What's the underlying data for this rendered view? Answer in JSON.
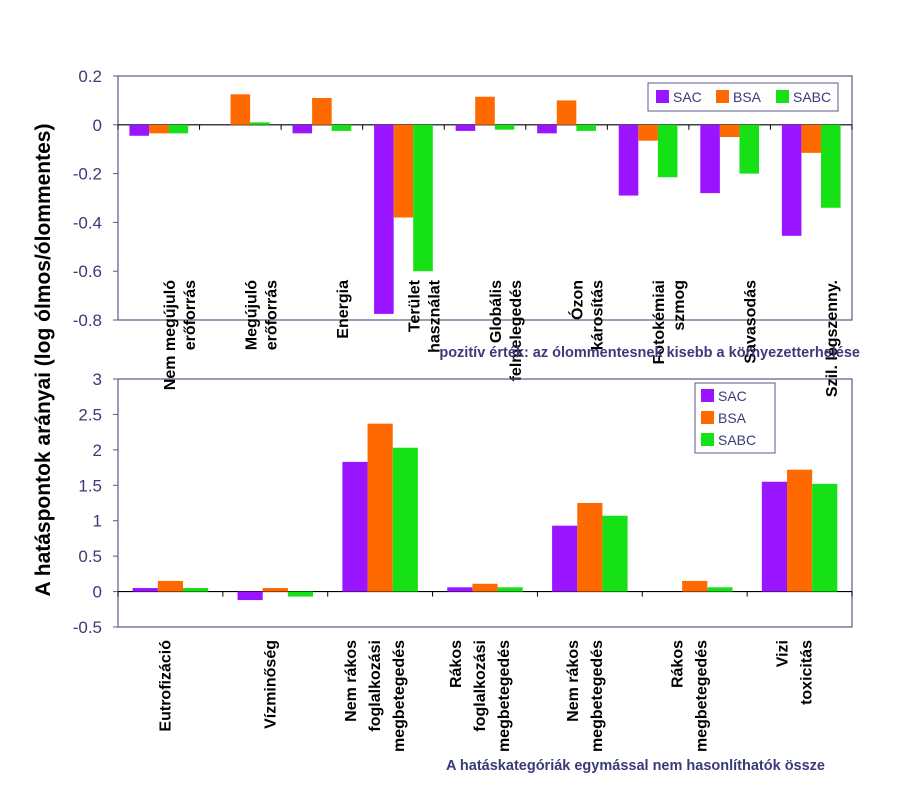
{
  "y_axis_title": "A hatáspontok arányai  (log ólmos/ólommentes)",
  "colors": {
    "SAC": "#9b14ff",
    "BSA": "#ff6a00",
    "SABC": "#16e016",
    "axis": "#3a3a7a",
    "frame": "#5a5a8a"
  },
  "chart_data": [
    {
      "type": "bar",
      "name": "top",
      "ylim": [
        -0.8,
        0.2
      ],
      "yticks": [
        "0.2",
        "0",
        "-0.2",
        "-0.4",
        "-0.6",
        "-0.8"
      ],
      "ytick_values": [
        0.2,
        0,
        -0.2,
        -0.4,
        -0.6,
        -0.8
      ],
      "categories": [
        [
          "Nem megújuló",
          "erőforrás"
        ],
        [
          "Megújuló",
          "erőforrás"
        ],
        [
          "Energia"
        ],
        [
          "Terület",
          "használat"
        ],
        [
          "Globális",
          "felmelegedés"
        ],
        [
          "Ózon",
          "károsítás"
        ],
        [
          "Fotokémiai",
          "szmog"
        ],
        [
          "Savasodás"
        ],
        [
          "Szil. légszenny."
        ]
      ],
      "series": [
        {
          "name": "SAC",
          "values": [
            -0.045,
            0,
            -0.035,
            -0.775,
            -0.025,
            -0.035,
            -0.29,
            -0.28,
            -0.455
          ]
        },
        {
          "name": "BSA",
          "values": [
            -0.035,
            0.125,
            0.11,
            -0.38,
            0.115,
            0.1,
            -0.065,
            -0.05,
            -0.115
          ]
        },
        {
          "name": "SABC",
          "values": [
            -0.035,
            0.01,
            -0.025,
            -0.6,
            -0.02,
            -0.025,
            -0.215,
            -0.2,
            -0.34
          ]
        }
      ],
      "legend": [
        "SAC",
        "BSA",
        "SABC"
      ],
      "note": "pozitív érték: az ólommentesnek kisebb a környezetterhelése"
    },
    {
      "type": "bar",
      "name": "bottom",
      "ylim": [
        -0.5,
        3
      ],
      "yticks": [
        "3",
        "2.5",
        "2",
        "1.5",
        "1",
        "0.5",
        "0",
        "-0.5"
      ],
      "ytick_values": [
        3,
        2.5,
        2,
        1.5,
        1,
        0.5,
        0,
        -0.5
      ],
      "categories": [
        [
          "Eutrofizáció"
        ],
        [
          "Vízminőség"
        ],
        [
          "Nem rákos",
          "foglalkozási",
          "megbetegedés"
        ],
        [
          "Rákos",
          "foglalkozási",
          "megbetegedés"
        ],
        [
          "Nem rákos",
          "megbetegedés"
        ],
        [
          "Rákos",
          "megbetegedés"
        ],
        [
          "Vizi",
          "toxicitás"
        ]
      ],
      "series": [
        {
          "name": "SAC",
          "values": [
            0.05,
            -0.12,
            1.83,
            0.06,
            0.93,
            0,
            1.55
          ]
        },
        {
          "name": "BSA",
          "values": [
            0.15,
            0.05,
            2.37,
            0.11,
            1.25,
            0.15,
            1.72
          ]
        },
        {
          "name": "SABC",
          "values": [
            0.05,
            -0.07,
            2.03,
            0.06,
            1.07,
            0.06,
            1.52
          ]
        }
      ],
      "legend": [
        "SAC",
        "BSA",
        "SABC"
      ],
      "note": "A hatáskategóriák egymással nem hasonlíthatók össze"
    }
  ]
}
